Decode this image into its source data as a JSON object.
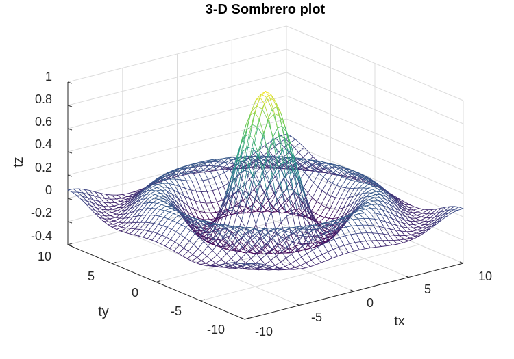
{
  "chart_data": {
    "type": "surface-mesh",
    "title": "3-D Sombrero plot",
    "xlabel": "tx",
    "ylabel": "ty",
    "zlabel": "tz",
    "function": "sin(r)/r, r = sqrt(tx^2 + ty^2)",
    "xlim": [
      -10,
      10
    ],
    "ylim": [
      -10,
      10
    ],
    "zlim": [
      -0.4,
      1
    ],
    "grid_points": 41,
    "x_ticks": [
      -10,
      -5,
      0,
      5,
      10
    ],
    "y_ticks": [
      -10,
      -5,
      0,
      5,
      10
    ],
    "z_ticks": [
      -0.4,
      -0.2,
      0,
      0.2,
      0.4,
      0.6,
      0.8,
      1
    ],
    "x_tick_labels": [
      "-10",
      "-5",
      "0",
      "5",
      "10"
    ],
    "y_tick_labels": [
      "-10",
      "-5",
      "0",
      "5",
      "10"
    ],
    "z_tick_labels": [
      "-0.4",
      "-0.2",
      "0",
      "0.2",
      "0.4",
      "0.6",
      "0.8",
      "1"
    ],
    "colormap": [
      "#440154",
      "#3b528b",
      "#21918c",
      "#5ec962",
      "#fde725"
    ],
    "grid": true
  }
}
